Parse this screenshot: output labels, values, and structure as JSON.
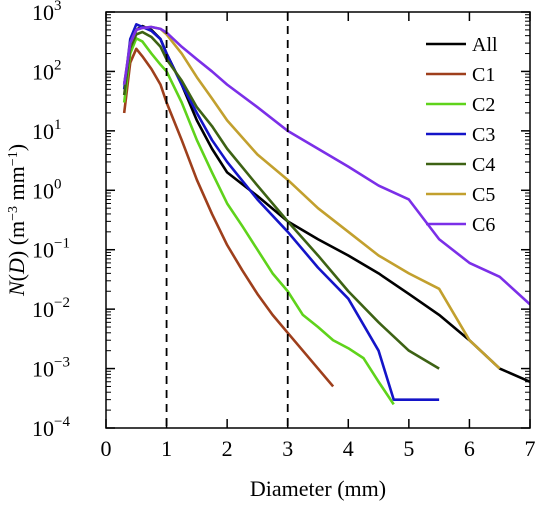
{
  "chart_data": {
    "type": "line",
    "xlabel": "Diameter (mm)",
    "ylabel": "N(D) (m⁻³ mm⁻¹)",
    "ylabel_parts": {
      "n": "N",
      "d": "D",
      "unit_a": "m",
      "exp_a": "−3",
      "unit_b": " mm",
      "exp_b": "−1"
    },
    "xlim": [
      0,
      7
    ],
    "ylim": [
      0.0001,
      1000
    ],
    "y_scale": "log",
    "grid": false,
    "legend_placement": "top-right",
    "x_ticks": [
      0,
      1,
      2,
      3,
      4,
      5,
      6,
      7
    ],
    "x_tick_labels": [
      "0",
      "1",
      "2",
      "3",
      "4",
      "5",
      "6",
      "7"
    ],
    "y_ticks": [
      {
        "value": 1000,
        "base": "10",
        "exp": "3"
      },
      {
        "value": 100,
        "base": "10",
        "exp": "2"
      },
      {
        "value": 10,
        "base": "10",
        "exp": "1"
      },
      {
        "value": 1,
        "base": "10",
        "exp": "0"
      },
      {
        "value": 0.1,
        "base": "10",
        "exp": "−1"
      },
      {
        "value": 0.01,
        "base": "10",
        "exp": "−2"
      },
      {
        "value": 0.001,
        "base": "10",
        "exp": "−3"
      },
      {
        "value": 0.0001,
        "base": "10",
        "exp": "−4"
      }
    ],
    "reference_lines_x": [
      1,
      3
    ],
    "series": [
      {
        "name": "All",
        "color": "#000000",
        "x": [
          0.3,
          0.4,
          0.5,
          0.6,
          0.75,
          0.9,
          1.0,
          1.25,
          1.5,
          1.75,
          2.0,
          2.5,
          3.0,
          3.5,
          4.0,
          4.5,
          5.0,
          5.5,
          6.0,
          6.5,
          7.0
        ],
        "y": [
          60,
          250,
          500,
          580,
          500,
          350,
          200,
          60,
          15,
          5,
          2,
          0.8,
          0.3,
          0.15,
          0.08,
          0.04,
          0.018,
          0.008,
          0.003,
          0.001,
          0.0006
        ]
      },
      {
        "name": "C1",
        "color": "#9e3f1c",
        "x": [
          0.3,
          0.4,
          0.5,
          0.6,
          0.75,
          0.9,
          1.0,
          1.25,
          1.5,
          1.75,
          2.0,
          2.25,
          2.5,
          2.75,
          3.0,
          3.25,
          3.5,
          3.75
        ],
        "y": [
          20,
          140,
          240,
          180,
          110,
          60,
          30,
          7,
          1.5,
          0.4,
          0.12,
          0.045,
          0.018,
          0.008,
          0.004,
          0.002,
          0.001,
          0.0005
        ]
      },
      {
        "name": "C2",
        "color": "#5fd31b",
        "x": [
          0.3,
          0.4,
          0.5,
          0.6,
          0.75,
          0.9,
          1.0,
          1.25,
          1.5,
          1.75,
          2.0,
          2.25,
          2.5,
          2.75,
          3.0,
          3.25,
          3.5,
          3.75,
          4.0,
          4.25,
          4.5,
          4.75
        ],
        "y": [
          30,
          200,
          360,
          320,
          200,
          130,
          100,
          30,
          7,
          2,
          0.6,
          0.25,
          0.1,
          0.04,
          0.02,
          0.008,
          0.005,
          0.003,
          0.0022,
          0.0015,
          0.0006,
          0.00025
        ]
      },
      {
        "name": "C3",
        "color": "#1414c8",
        "x": [
          0.3,
          0.4,
          0.5,
          0.6,
          0.75,
          0.9,
          1.0,
          1.25,
          1.5,
          1.75,
          2.0,
          2.5,
          3.0,
          3.5,
          4.0,
          4.5,
          4.75,
          5.0,
          5.25,
          5.5
        ],
        "y": [
          50,
          350,
          620,
          560,
          480,
          350,
          200,
          60,
          20,
          7,
          3,
          0.7,
          0.2,
          0.05,
          0.015,
          0.002,
          0.0003,
          0.0003,
          0.0003,
          0.0003
        ]
      },
      {
        "name": "C4",
        "color": "#3d6214",
        "x": [
          0.3,
          0.4,
          0.5,
          0.6,
          0.75,
          0.9,
          1.0,
          1.25,
          1.5,
          1.75,
          2.0,
          2.5,
          3.0,
          3.5,
          4.0,
          4.5,
          5.0,
          5.5
        ],
        "y": [
          40,
          250,
          420,
          460,
          380,
          260,
          160,
          70,
          25,
          12,
          5,
          1.2,
          0.3,
          0.08,
          0.02,
          0.006,
          0.002,
          0.001
        ]
      },
      {
        "name": "C5",
        "color": "#c2a02e",
        "x": [
          0.3,
          0.4,
          0.5,
          0.6,
          0.75,
          0.9,
          1.0,
          1.25,
          1.5,
          1.75,
          2.0,
          2.5,
          3.0,
          3.5,
          4.0,
          4.5,
          5.0,
          5.5,
          6.0,
          6.5
        ],
        "y": [
          60,
          300,
          500,
          540,
          560,
          520,
          420,
          200,
          80,
          35,
          15,
          4,
          1.5,
          0.5,
          0.2,
          0.08,
          0.04,
          0.022,
          0.003,
          0.001
        ]
      },
      {
        "name": "C6",
        "color": "#7b2fe8",
        "x": [
          0.3,
          0.4,
          0.5,
          0.6,
          0.75,
          0.9,
          1.0,
          1.25,
          1.5,
          1.75,
          2.0,
          2.5,
          3.0,
          3.5,
          4.0,
          4.5,
          5.0,
          5.5,
          6.0,
          6.5,
          7.0
        ],
        "y": [
          60,
          300,
          500,
          540,
          560,
          520,
          450,
          260,
          160,
          100,
          60,
          25,
          10,
          5,
          2.5,
          1.2,
          0.7,
          0.15,
          0.06,
          0.035,
          0.012
        ]
      }
    ]
  }
}
